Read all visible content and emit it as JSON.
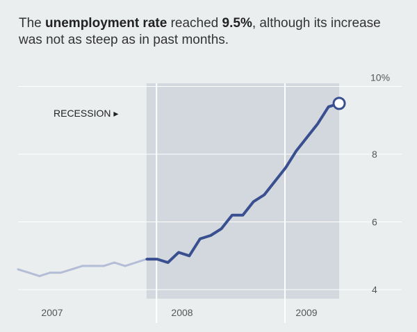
{
  "headline": {
    "part1": "The ",
    "bold1": "unemployment rate",
    "part2": " reached ",
    "bold2": "9.5%",
    "part3": ", although its increase was not as steep as in past months."
  },
  "chart_data": {
    "type": "line",
    "title": "The unemployment rate reached 9.5%, although its increase was not as steep as in past months.",
    "xlabel": "",
    "ylabel": "",
    "x_tick_labels": [
      "2007",
      "2008",
      "2009"
    ],
    "y_tick_labels": [
      "4",
      "6",
      "8",
      "10%"
    ],
    "y_ticks": [
      4,
      6,
      8,
      10
    ],
    "ylim": [
      3.8,
      10.2
    ],
    "grid": true,
    "annotation": {
      "text": "RECESSION",
      "marker": "▸"
    },
    "recession_start": "2007-12",
    "recession_end": "2009-06",
    "colors": {
      "background": "#ebeeef",
      "recession_shade": "#d2d8de",
      "grid": "#ffffff",
      "pre_recession_line": "#b4bdd7",
      "line": "#3a4f8f"
    },
    "series": [
      {
        "x": [
          "2006-12",
          "2007-01",
          "2007-02",
          "2007-03",
          "2007-04",
          "2007-05",
          "2007-06",
          "2007-07",
          "2007-08",
          "2007-09",
          "2007-10",
          "2007-11",
          "2007-12",
          "2008-01",
          "2008-02",
          "2008-03",
          "2008-04",
          "2008-05",
          "2008-06",
          "2008-07",
          "2008-08",
          "2008-09",
          "2008-10",
          "2008-11",
          "2008-12",
          "2009-01",
          "2009-02",
          "2009-03",
          "2009-04",
          "2009-05",
          "2009-06"
        ],
        "values": [
          4.6,
          4.5,
          4.4,
          4.5,
          4.5,
          4.6,
          4.7,
          4.7,
          4.7,
          4.8,
          4.7,
          4.8,
          4.9,
          4.9,
          4.8,
          5.1,
          5.0,
          5.5,
          5.6,
          5.8,
          6.2,
          6.2,
          6.6,
          6.8,
          7.2,
          7.6,
          8.1,
          8.5,
          8.9,
          9.4,
          9.5
        ]
      }
    ]
  }
}
